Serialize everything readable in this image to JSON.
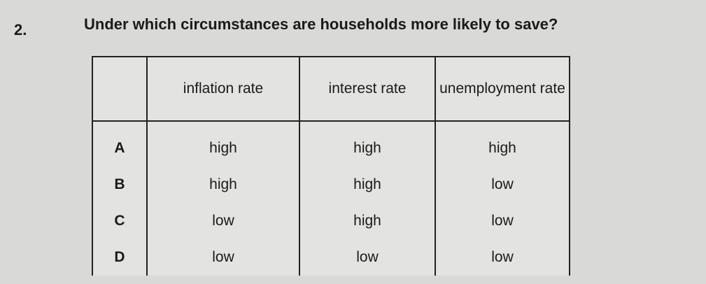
{
  "question": {
    "number": "2.",
    "text": "Under which circumstances are households more likely to save?"
  },
  "table": {
    "headers": [
      "",
      "inflation rate",
      "interest rate",
      "unemployment rate"
    ],
    "rows": [
      {
        "option": "A",
        "inflation": "high",
        "interest": "high",
        "unemployment": "high"
      },
      {
        "option": "B",
        "inflation": "high",
        "interest": "high",
        "unemployment": "low"
      },
      {
        "option": "C",
        "inflation": "low",
        "interest": "high",
        "unemployment": "low"
      },
      {
        "option": "D",
        "inflation": "low",
        "interest": "low",
        "unemployment": "low"
      }
    ]
  }
}
